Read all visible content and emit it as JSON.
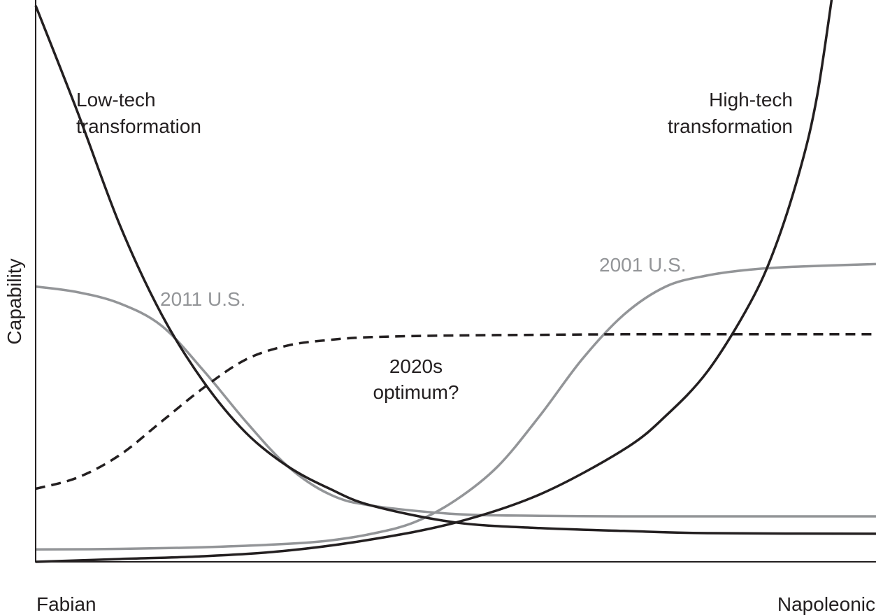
{
  "chart_data": {
    "type": "line",
    "title": "",
    "xlabel": "",
    "ylabel": "Capability",
    "x_tick_labels": [
      "Fabian",
      "Napoleonic"
    ],
    "xlim": [
      0,
      1
    ],
    "ylim": [
      0,
      1
    ],
    "grid": false,
    "series": [
      {
        "name": "Low-tech transformation",
        "label_lines": [
          "Low-tech",
          "transformation"
        ],
        "color": "#231f20",
        "dash": false,
        "x": [
          0.0,
          0.05,
          0.1,
          0.15,
          0.2,
          0.25,
          0.3,
          0.35,
          0.4,
          0.5,
          0.6,
          0.7,
          0.8,
          1.0
        ],
        "y": [
          0.99,
          0.8,
          0.6,
          0.44,
          0.32,
          0.23,
          0.17,
          0.13,
          0.1,
          0.07,
          0.06,
          0.055,
          0.051,
          0.05
        ]
      },
      {
        "name": "High-tech transformation",
        "label_lines": [
          "High-tech",
          "transformation"
        ],
        "color": "#231f20",
        "dash": false,
        "x": [
          0.0,
          0.1,
          0.2,
          0.3,
          0.4,
          0.5,
          0.6,
          0.7,
          0.75,
          0.8,
          0.85,
          0.88,
          0.91,
          0.93,
          0.95
        ],
        "y": [
          0.0,
          0.005,
          0.01,
          0.02,
          0.04,
          0.07,
          0.12,
          0.2,
          0.26,
          0.34,
          0.46,
          0.56,
          0.7,
          0.83,
          1.03
        ]
      },
      {
        "name": "2011 U.S.",
        "label_lines": [
          "2011 U.S."
        ],
        "color": "#939598",
        "dash": false,
        "x": [
          0.0,
          0.05,
          0.1,
          0.15,
          0.2,
          0.25,
          0.3,
          0.35,
          0.4,
          0.5,
          0.6,
          0.7,
          0.8,
          1.0
        ],
        "y": [
          0.49,
          0.48,
          0.46,
          0.42,
          0.34,
          0.25,
          0.17,
          0.12,
          0.1,
          0.085,
          0.082,
          0.081,
          0.081,
          0.081
        ]
      },
      {
        "name": "2001 U.S.",
        "label_lines": [
          "2001 U.S."
        ],
        "color": "#939598",
        "dash": false,
        "x": [
          0.0,
          0.1,
          0.2,
          0.3,
          0.35,
          0.4,
          0.45,
          0.5,
          0.55,
          0.6,
          0.65,
          0.7,
          0.75,
          0.8,
          0.85,
          0.9,
          1.0
        ],
        "y": [
          0.022,
          0.023,
          0.026,
          0.032,
          0.038,
          0.05,
          0.07,
          0.11,
          0.17,
          0.26,
          0.36,
          0.44,
          0.49,
          0.51,
          0.52,
          0.525,
          0.53
        ]
      },
      {
        "name": "2020s optimum?",
        "label_lines": [
          "2020s",
          "optimum?"
        ],
        "color": "#231f20",
        "dash": true,
        "x": [
          0.0,
          0.05,
          0.1,
          0.15,
          0.2,
          0.25,
          0.3,
          0.35,
          0.4,
          0.5,
          0.6,
          0.7,
          0.8,
          1.0
        ],
        "y": [
          0.13,
          0.15,
          0.19,
          0.25,
          0.31,
          0.36,
          0.385,
          0.395,
          0.4,
          0.403,
          0.404,
          0.405,
          0.405,
          0.405
        ]
      }
    ]
  }
}
